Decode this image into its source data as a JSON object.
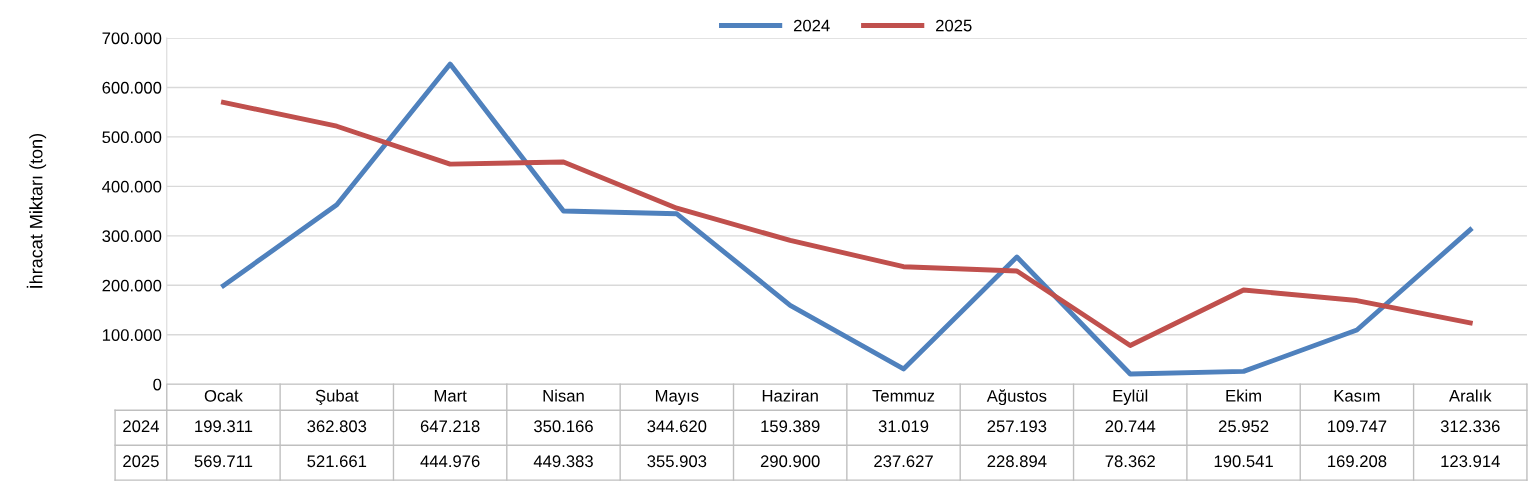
{
  "chart_data": {
    "type": "line",
    "ylabel": "İhracat Miktarı (ton)",
    "categories": [
      "Ocak",
      "Şubat",
      "Mart",
      "Nisan",
      "Mayıs",
      "Haziran",
      "Temmuz",
      "Ağustos",
      "Eylül",
      "Ekim",
      "Kasım",
      "Aralık"
    ],
    "series": [
      {
        "name": "2024",
        "color": "#4f81bd",
        "values": [
          199311,
          362803,
          647218,
          350166,
          344620,
          159389,
          31019,
          257193,
          20744,
          25952,
          109747,
          312336
        ],
        "value_labels": [
          "199.311",
          "362.803",
          "647.218",
          "350.166",
          "344.620",
          "159.389",
          "31.019",
          "257.193",
          "20.744",
          "25.952",
          "109.747",
          "312.336"
        ]
      },
      {
        "name": "2025",
        "color": "#c0504d",
        "values": [
          569711,
          521661,
          444976,
          449383,
          355903,
          290900,
          237627,
          228894,
          78362,
          190541,
          169208,
          123914
        ],
        "value_labels": [
          "569.711",
          "521.661",
          "444.976",
          "449.383",
          "355.903",
          "290.900",
          "237.627",
          "228.894",
          "78.362",
          "190.541",
          "169.208",
          "123.914"
        ]
      }
    ],
    "ylim": [
      0,
      700000
    ],
    "yticks": [
      0,
      {
        "value": 100000,
        "label": "100.000"
      },
      {
        "value": 200000,
        "label": "200.000"
      },
      {
        "value": 300000,
        "label": "300.000"
      },
      {
        "value": 400000,
        "label": "400.000"
      },
      {
        "value": 500000,
        "label": "500.000"
      },
      {
        "value": 600000,
        "label": "600.000"
      },
      {
        "value": 700000,
        "label": "700.000"
      }
    ],
    "grid": "y",
    "legend": "top"
  }
}
